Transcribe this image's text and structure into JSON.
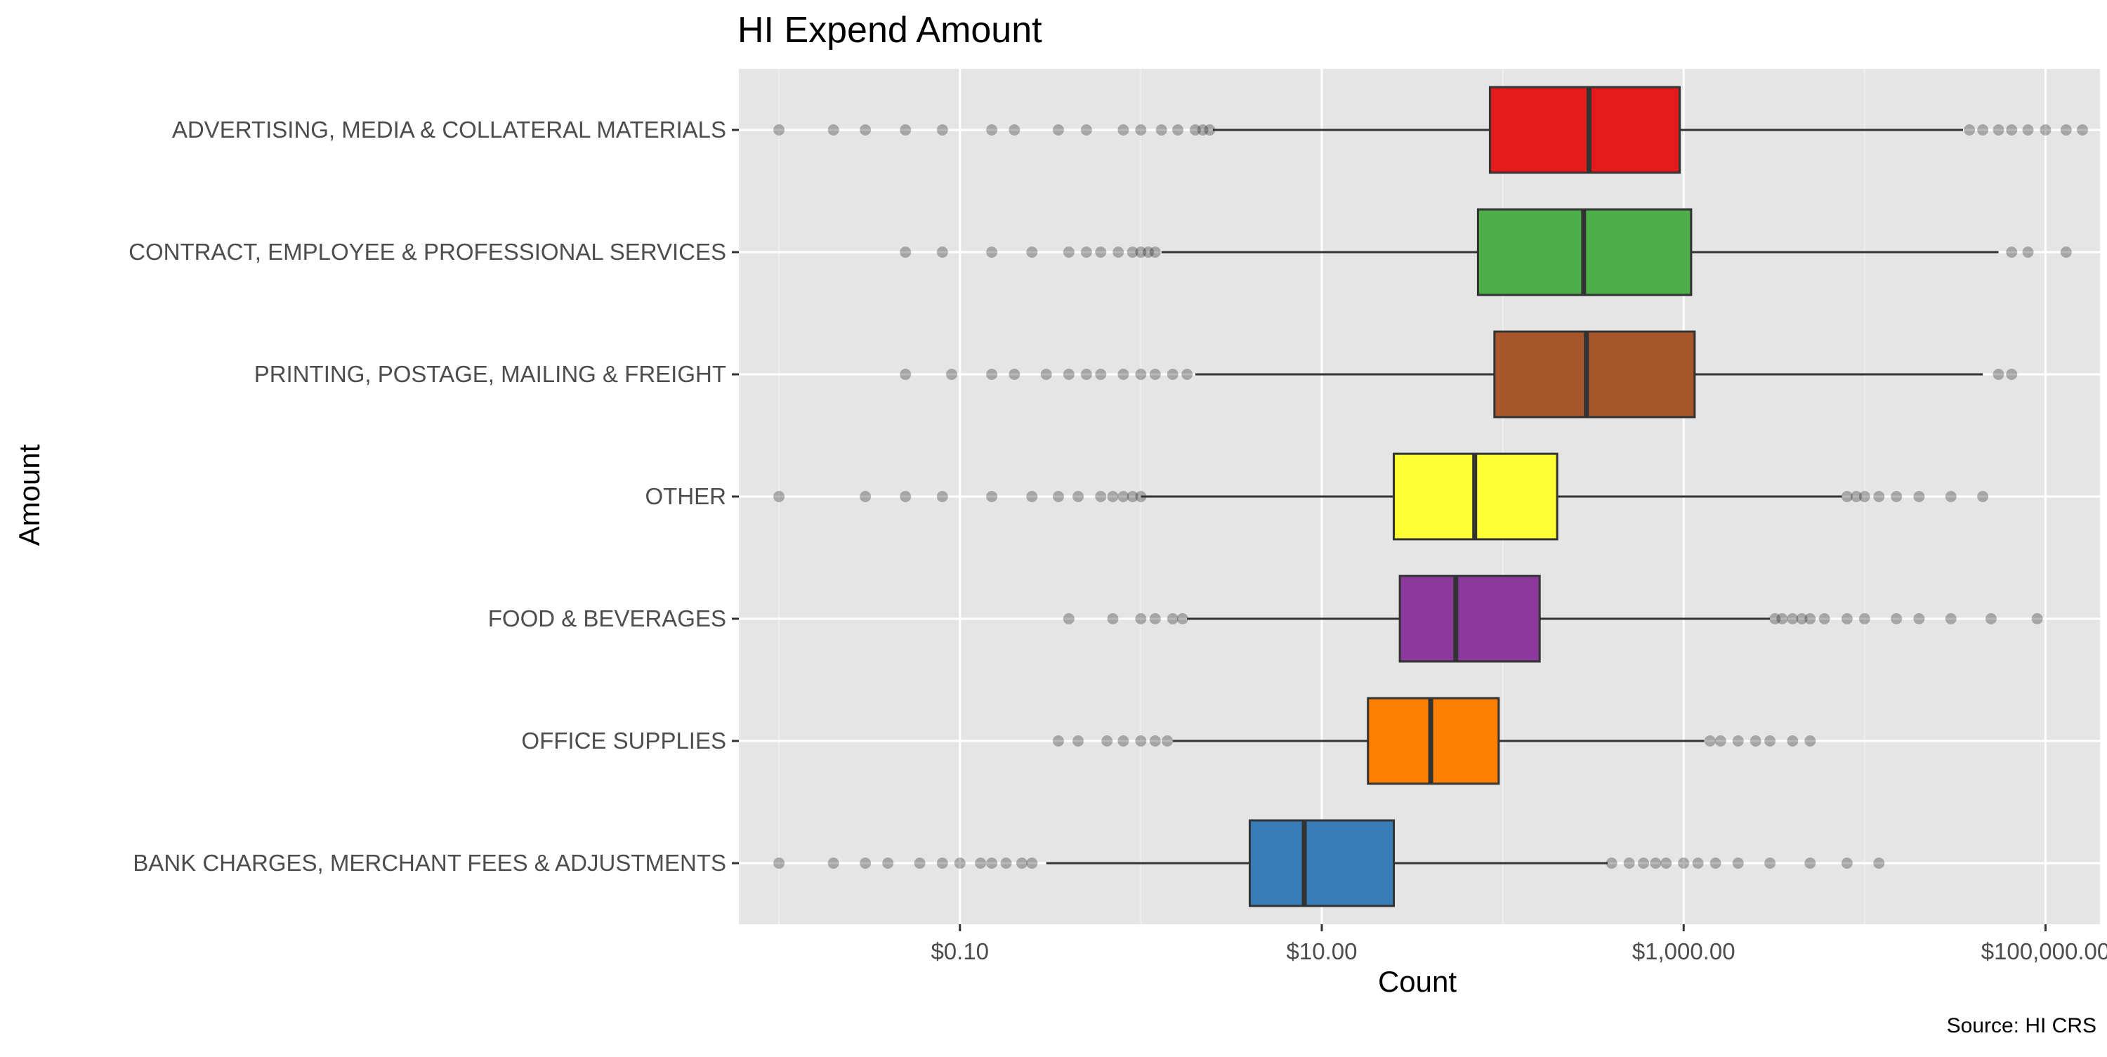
{
  "chart_data": {
    "type": "boxplot",
    "title": "HI Expend Amount",
    "xlabel": "Count",
    "ylabel": "Amount",
    "caption": "Source: HI CRS",
    "x_scale": "log10",
    "x_range": [
      0.006,
      200000
    ],
    "x_ticks": [
      {
        "value": 0.1,
        "label": "$0.10"
      },
      {
        "value": 10,
        "label": "$10.00"
      },
      {
        "value": 1000,
        "label": "$1,000.00"
      },
      {
        "value": 100000,
        "label": "$100,000.00"
      }
    ],
    "grid": true,
    "legend": "none",
    "categories": [
      {
        "name": "ADVERTISING, MEDIA & COLLATERAL MATERIALS",
        "color": "#E41A1C",
        "whisker_low": 2.5,
        "q1": 85,
        "median": 300,
        "q3": 950,
        "whisker_high": 35000,
        "outliers": [
          0.01,
          0.02,
          0.03,
          0.05,
          0.08,
          0.15,
          0.2,
          0.35,
          0.5,
          0.8,
          1,
          1.3,
          1.6,
          2,
          2.2,
          2.4,
          38000,
          45000,
          55000,
          65000,
          80000,
          100000,
          130000,
          160000
        ]
      },
      {
        "name": "CONTRACT, EMPLOYEE & PROFESSIONAL SERVICES",
        "color": "#4DAF4A",
        "whisker_low": 1.3,
        "q1": 73,
        "median": 280,
        "q3": 1100,
        "whisker_high": 55000,
        "outliers": [
          0.05,
          0.08,
          0.15,
          0.25,
          0.4,
          0.5,
          0.6,
          0.75,
          0.9,
          1,
          1.1,
          1.2,
          65000,
          80000,
          130000
        ]
      },
      {
        "name": "PRINTING, POSTAGE, MAILING & FREIGHT",
        "color": "#A65628",
        "whisker_low": 2.0,
        "q1": 90,
        "median": 290,
        "q3": 1150,
        "whisker_high": 45000,
        "outliers": [
          0.05,
          0.09,
          0.15,
          0.2,
          0.3,
          0.4,
          0.5,
          0.6,
          0.8,
          1,
          1.2,
          1.5,
          1.8,
          55000,
          65000
        ]
      },
      {
        "name": "OTHER",
        "color": "#FFFF33",
        "whisker_low": 1.0,
        "q1": 25,
        "median": 70,
        "q3": 200,
        "whisker_high": 7500,
        "outliers": [
          0.01,
          0.03,
          0.05,
          0.08,
          0.15,
          0.25,
          0.35,
          0.45,
          0.6,
          0.7,
          0.8,
          0.9,
          1,
          8000,
          9000,
          10000,
          12000,
          15000,
          20000,
          30000,
          45000
        ]
      },
      {
        "name": "FOOD & BEVERAGES",
        "color": "#8B3A9C",
        "whisker_low": 1.8,
        "q1": 27,
        "median": 55,
        "q3": 160,
        "whisker_high": 3000,
        "outliers": [
          0.4,
          0.7,
          1,
          1.2,
          1.5,
          1.7,
          3200,
          3500,
          4000,
          4500,
          5000,
          6000,
          8000,
          10000,
          15000,
          20000,
          30000,
          50000,
          90000
        ]
      },
      {
        "name": "OFFICE SUPPLIES",
        "color": "#FF7F00",
        "whisker_low": 1.5,
        "q1": 18,
        "median": 40,
        "q3": 95,
        "whisker_high": 1300,
        "outliers": [
          0.35,
          0.45,
          0.65,
          0.8,
          1,
          1.2,
          1.4,
          1400,
          1600,
          2000,
          2500,
          3000,
          4000,
          5000
        ]
      },
      {
        "name": "BANK CHARGES, MERCHANT FEES & ADJUSTMENTS",
        "color": "#377EB8",
        "whisker_low": 0.3,
        "q1": 4,
        "median": 8,
        "q3": 25,
        "whisker_high": 380,
        "outliers": [
          0.01,
          0.02,
          0.03,
          0.04,
          0.06,
          0.08,
          0.1,
          0.13,
          0.15,
          0.18,
          0.22,
          0.25,
          400,
          500,
          600,
          700,
          800,
          1000,
          1200,
          1500,
          2000,
          3000,
          5000,
          8000,
          12000
        ]
      }
    ]
  }
}
